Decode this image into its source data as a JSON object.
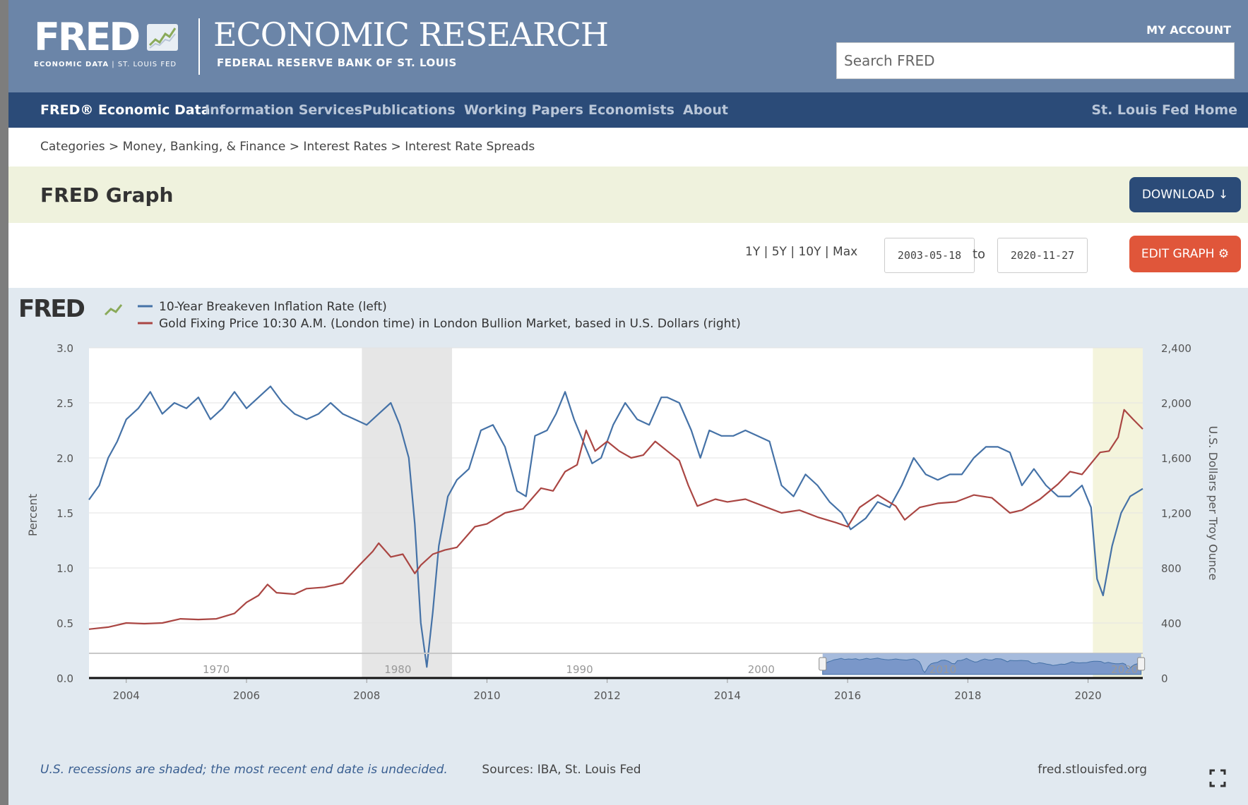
{
  "header": {
    "logo": "FRED",
    "logo_sub_bold": "ECONOMIC DATA",
    "logo_sub_rest": "| ST. LOUIS FED",
    "title": "ECONOMIC RESEARCH",
    "subtitle": "FEDERAL RESERVE BANK OF ST. LOUIS",
    "my_account": "MY ACCOUNT",
    "search_placeholder": "Search FRED"
  },
  "nav": {
    "items": [
      {
        "label": "FRED® Economic Data",
        "active": true
      },
      {
        "label": "Information Services",
        "active": false
      },
      {
        "label": "Publications",
        "active": false
      },
      {
        "label": "Working Papers",
        "active": false
      },
      {
        "label": "Economists",
        "active": false
      },
      {
        "label": "About",
        "active": false
      }
    ],
    "right_item": "St. Louis Fed Home"
  },
  "breadcrumb": "Categories > Money, Banking, & Finance > Interest Rates > Interest Rate Spreads",
  "graph_header": {
    "title": "FRED Graph",
    "download_label": "DOWNLOAD"
  },
  "controls": {
    "range_links": "1Y | 5Y | 10Y | Max",
    "date_from": "2003-05-18",
    "to_label": "to",
    "date_to": "2020-11-27",
    "edit_label": "EDIT GRAPH"
  },
  "footer": {
    "recession_note": "U.S. recessions are shaded; the most recent end date is undecided.",
    "sources": "Sources: IBA, St. Louis Fed",
    "site": "fred.stlouisfed.org"
  },
  "colors": {
    "blue_series": "#4572a7",
    "red_series": "#aa4643",
    "recession_shade": "#e6e6e6",
    "recent_recession_shade": "#f4f4dc"
  },
  "chart_data": {
    "type": "line",
    "title": "",
    "xlabel": "",
    "ylabel_left": "Percent",
    "ylabel_right": "U.S. Dollars per Troy Ounce",
    "xlim": [
      2003.38,
      2020.91
    ],
    "ylim_left": [
      0,
      3.0
    ],
    "ylim_right": [
      0,
      2400
    ],
    "x_ticks": [
      "2004",
      "2006",
      "2008",
      "2010",
      "2012",
      "2014",
      "2016",
      "2018",
      "2020"
    ],
    "y_ticks_left": [
      "0.0",
      "0.5",
      "1.0",
      "1.5",
      "2.0",
      "2.5",
      "3.0"
    ],
    "y_ticks_right": [
      "0",
      "400",
      "800",
      "1,200",
      "1,600",
      "2,000",
      "2,400"
    ],
    "grid": true,
    "legend_position": "top-left",
    "recessions": [
      [
        2007.92,
        2009.42
      ],
      [
        2020.08,
        2020.91
      ]
    ],
    "navigator_ticks": [
      "1970",
      "1980",
      "1990",
      "2000",
      "2010",
      "2020"
    ],
    "series": [
      {
        "name": "10-Year Breakeven Inflation Rate (left)",
        "axis": "left",
        "x": [
          2003.38,
          2003.55,
          2003.7,
          2003.85,
          2004.0,
          2004.2,
          2004.4,
          2004.6,
          2004.8,
          2005.0,
          2005.2,
          2005.4,
          2005.6,
          2005.8,
          2006.0,
          2006.2,
          2006.4,
          2006.6,
          2006.8,
          2007.0,
          2007.2,
          2007.4,
          2007.6,
          2007.8,
          2008.0,
          2008.2,
          2008.4,
          2008.55,
          2008.7,
          2008.8,
          2008.9,
          2009.0,
          2009.1,
          2009.2,
          2009.35,
          2009.5,
          2009.7,
          2009.9,
          2010.1,
          2010.3,
          2010.5,
          2010.65,
          2010.8,
          2011.0,
          2011.15,
          2011.3,
          2011.45,
          2011.6,
          2011.75,
          2011.9,
          2012.1,
          2012.3,
          2012.5,
          2012.7,
          2012.9,
          2013.0,
          2013.2,
          2013.4,
          2013.55,
          2013.7,
          2013.9,
          2014.1,
          2014.3,
          2014.5,
          2014.7,
          2014.9,
          2015.1,
          2015.3,
          2015.5,
          2015.7,
          2015.9,
          2016.05,
          2016.3,
          2016.5,
          2016.7,
          2016.9,
          2017.1,
          2017.3,
          2017.5,
          2017.7,
          2017.9,
          2018.1,
          2018.3,
          2018.5,
          2018.7,
          2018.9,
          2019.1,
          2019.3,
          2019.5,
          2019.7,
          2019.9,
          2020.05,
          2020.15,
          2020.25,
          2020.4,
          2020.55,
          2020.7,
          2020.91
        ],
        "y": [
          1.62,
          1.75,
          2.0,
          2.15,
          2.35,
          2.45,
          2.6,
          2.4,
          2.5,
          2.45,
          2.55,
          2.35,
          2.45,
          2.6,
          2.45,
          2.55,
          2.65,
          2.5,
          2.4,
          2.35,
          2.4,
          2.5,
          2.4,
          2.35,
          2.3,
          2.4,
          2.5,
          2.3,
          2.0,
          1.4,
          0.5,
          0.1,
          0.6,
          1.2,
          1.65,
          1.8,
          1.9,
          2.25,
          2.3,
          2.1,
          1.7,
          1.65,
          2.2,
          2.25,
          2.4,
          2.6,
          2.35,
          2.15,
          1.95,
          2.0,
          2.3,
          2.5,
          2.35,
          2.3,
          2.55,
          2.55,
          2.5,
          2.25,
          2.0,
          2.25,
          2.2,
          2.2,
          2.25,
          2.2,
          2.15,
          1.75,
          1.65,
          1.85,
          1.75,
          1.6,
          1.5,
          1.35,
          1.45,
          1.6,
          1.55,
          1.75,
          2.0,
          1.85,
          1.8,
          1.85,
          1.85,
          2.0,
          2.1,
          2.1,
          2.05,
          1.75,
          1.9,
          1.75,
          1.65,
          1.65,
          1.75,
          1.55,
          0.9,
          0.75,
          1.2,
          1.5,
          1.65,
          1.72
        ]
      },
      {
        "name": "Gold Fixing Price 10:30 A.M. (London time) in London Bullion Market, based in U.S. Dollars (right)",
        "axis": "right",
        "x": [
          2003.38,
          2003.7,
          2004.0,
          2004.3,
          2004.6,
          2004.9,
          2005.2,
          2005.5,
          2005.8,
          2006.0,
          2006.2,
          2006.35,
          2006.5,
          2006.8,
          2007.0,
          2007.3,
          2007.6,
          2007.9,
          2008.1,
          2008.2,
          2008.4,
          2008.6,
          2008.8,
          2008.9,
          2009.1,
          2009.3,
          2009.5,
          2009.8,
          2010.0,
          2010.3,
          2010.6,
          2010.9,
          2011.1,
          2011.3,
          2011.5,
          2011.65,
          2011.8,
          2012.0,
          2012.2,
          2012.4,
          2012.6,
          2012.8,
          2013.0,
          2013.2,
          2013.35,
          2013.5,
          2013.8,
          2014.0,
          2014.3,
          2014.6,
          2014.9,
          2015.2,
          2015.5,
          2015.8,
          2016.0,
          2016.2,
          2016.5,
          2016.8,
          2016.95,
          2017.2,
          2017.5,
          2017.8,
          2018.1,
          2018.4,
          2018.7,
          2018.9,
          2019.2,
          2019.5,
          2019.7,
          2019.9,
          2020.05,
          2020.2,
          2020.35,
          2020.5,
          2020.6,
          2020.75,
          2020.91
        ],
        "y": [
          355,
          370,
          400,
          395,
          400,
          430,
          425,
          430,
          470,
          550,
          600,
          680,
          620,
          610,
          650,
          660,
          690,
          830,
          920,
          980,
          880,
          900,
          760,
          820,
          900,
          930,
          950,
          1100,
          1120,
          1200,
          1230,
          1380,
          1360,
          1500,
          1550,
          1800,
          1650,
          1720,
          1650,
          1600,
          1620,
          1720,
          1650,
          1580,
          1400,
          1250,
          1300,
          1280,
          1300,
          1250,
          1200,
          1220,
          1170,
          1130,
          1100,
          1240,
          1330,
          1250,
          1150,
          1240,
          1270,
          1280,
          1330,
          1310,
          1200,
          1220,
          1300,
          1410,
          1500,
          1480,
          1560,
          1640,
          1650,
          1750,
          1950,
          1880,
          1810
        ]
      }
    ]
  }
}
